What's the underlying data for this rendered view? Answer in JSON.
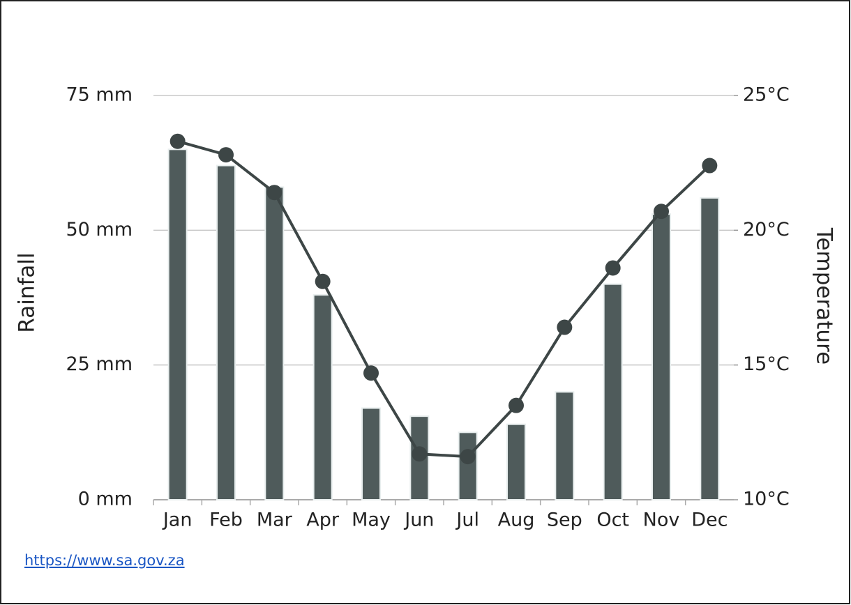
{
  "chart_data": {
    "type": "bar",
    "categories": [
      "Jan",
      "Feb",
      "Mar",
      "Apr",
      "May",
      "Jun",
      "Jul",
      "Aug",
      "Sep",
      "Oct",
      "Nov",
      "Dec"
    ],
    "series": [
      {
        "type": "bar",
        "color": "#4f5b5b",
        "values": [
          65,
          62,
          58,
          38,
          17,
          15.5,
          12.5,
          14,
          20,
          40,
          53,
          56
        ]
      },
      {
        "type": "line",
        "axis": "y2",
        "color": "#3d4646",
        "values": [
          23.3,
          22.8,
          21.4,
          18.1,
          14.7,
          11.7,
          11.6,
          13.5,
          16.4,
          18.6,
          20.7,
          22.4
        ]
      }
    ],
    "ylabel": "Rainfall",
    "y2label": "Temperature",
    "ylim": [
      0,
      75
    ],
    "yticks": [
      {
        "value": 0,
        "label": "0 mm"
      },
      {
        "value": 25,
        "label": "25 mm"
      },
      {
        "value": 50,
        "label": "50 mm"
      },
      {
        "value": 75,
        "label": "75 mm"
      }
    ],
    "y2lim": [
      10,
      25
    ],
    "y2ticks": [
      {
        "value": 10,
        "label": "10°C"
      },
      {
        "value": 15,
        "label": "15°C"
      },
      {
        "value": 20,
        "label": "20°C"
      },
      {
        "value": 25,
        "label": "25°C"
      }
    ],
    "grid": true
  },
  "source_url": "https://www.sa.gov.za"
}
